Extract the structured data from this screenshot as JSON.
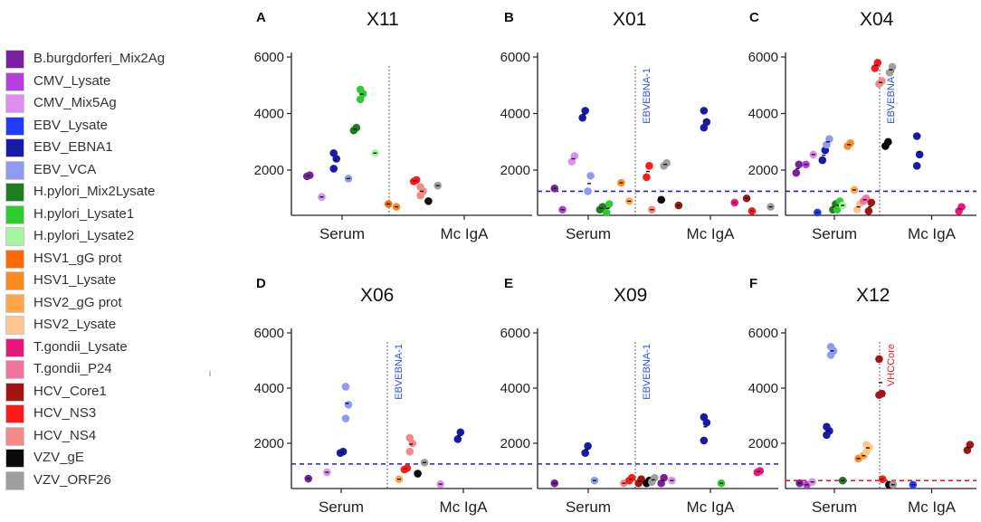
{
  "legend": [
    {
      "label": "B.burgdorferi_Mix2Ag",
      "color": "#7b1fa2"
    },
    {
      "label": "CMV_Lysate",
      "color": "#b43fdc"
    },
    {
      "label": "CMV_Mix5Ag",
      "color": "#dd8ff0"
    },
    {
      "label": "EBV_Lysate",
      "color": "#1e3cff"
    },
    {
      "label": "EBV_EBNA1",
      "color": "#1a1aa8"
    },
    {
      "label": "EBV_VCA",
      "color": "#8f9bf2"
    },
    {
      "label": "H.pylori_Mix2Lysate",
      "color": "#1e7d1e"
    },
    {
      "label": "H.pylori_Lysate1",
      "color": "#2ecc2e"
    },
    {
      "label": "H.pylori_Lysate2",
      "color": "#a6f5a0"
    },
    {
      "label": "HSV1_gG prot",
      "color": "#ff6a00"
    },
    {
      "label": "HSV1_Lysate",
      "color": "#ff8a1e"
    },
    {
      "label": "HSV2_gG prot",
      "color": "#ffa64d"
    },
    {
      "label": "HSV2_Lysate",
      "color": "#ffc58f"
    },
    {
      "label": "T.gondii_Lysate",
      "color": "#e8177d"
    },
    {
      "label": "T.gondii_P24",
      "color": "#f2739e"
    },
    {
      "label": "HCV_Core1",
      "color": "#a31515"
    },
    {
      "label": "HCV_NS3",
      "color": "#ff1a1a"
    },
    {
      "label": "HCV_NS4",
      "color": "#f58a8a"
    },
    {
      "label": "VZV_gE",
      "color": "#0a0a0a"
    },
    {
      "label": "VZV_ORF26",
      "color": "#9e9e9e"
    }
  ],
  "chart_data": [
    {
      "panel": "A",
      "title": "X11",
      "type": "scatter",
      "xlabels": [
        "Serum",
        "Mc IgA"
      ],
      "yticks": [
        "2000",
        "4000",
        "6000"
      ],
      "ylim": [
        500,
        6000
      ],
      "threshold": null,
      "annotation": null,
      "points": [
        {
          "g": "B.burgdorferi_Mix2Ag",
          "x": 1,
          "v": [
            1780,
            1820
          ]
        },
        {
          "g": "CMV_Mix5Ag",
          "x": 2,
          "v": [
            1050
          ]
        },
        {
          "g": "EBV_EBNA1",
          "x": 3,
          "v": [
            2050,
            2400,
            2600
          ]
        },
        {
          "g": "EBV_VCA",
          "x": 4,
          "v": [
            1700
          ]
        },
        {
          "g": "H.pylori_Mix2Lysate",
          "x": 4.5,
          "v": [
            3400,
            3500
          ]
        },
        {
          "g": "H.pylori_Lysate1",
          "x": 5,
          "v": [
            4500,
            4700,
            4850
          ]
        },
        {
          "g": "H.pylori_Lysate2",
          "x": 6,
          "v": [
            2600
          ]
        },
        {
          "g": "HSV1_gG prot",
          "x": 7,
          "v": [
            800
          ]
        },
        {
          "g": "HSV1_Lysate",
          "x": 7.6,
          "v": [
            700
          ]
        },
        {
          "g": "HCV_NS3",
          "x": 9,
          "v": [
            1600,
            1650
          ]
        },
        {
          "g": "HCV_NS4",
          "x": 9.5,
          "v": [
            1100,
            1250,
            1400
          ]
        },
        {
          "g": "VZV_gE",
          "x": 10,
          "v": [
            900
          ]
        },
        {
          "g": "VZV_ORF26",
          "x": 10.7,
          "v": [
            1450
          ]
        }
      ]
    },
    {
      "panel": "B",
      "title": "X01",
      "type": "scatter",
      "xlabels": [
        "Serum",
        "Mc IgA"
      ],
      "yticks": [
        "2000",
        "4000",
        "6000"
      ],
      "ylim": [
        500,
        6000
      ],
      "threshold": {
        "value": 1250,
        "color": "#2020c0"
      },
      "annotation": {
        "text": "EBVEBNA-1",
        "color": "#2f4fd0"
      },
      "points": [
        {
          "g": "B.burgdorferi_Mix2Ag",
          "x": 1,
          "v": [
            1350
          ]
        },
        {
          "g": "CMV_Lysate",
          "x": 1.6,
          "v": [
            600
          ]
        },
        {
          "g": "CMV_Mix5Ag",
          "x": 2.4,
          "v": [
            2300,
            2500
          ]
        },
        {
          "g": "EBV_EBNA1",
          "x": 3.2,
          "v": [
            3850,
            4100
          ]
        },
        {
          "g": "EBV_VCA",
          "x": 3.6,
          "v": [
            1250,
            1800
          ]
        },
        {
          "g": "H.pylori_Mix2Lysate",
          "x": 4.5,
          "v": [
            600,
            700
          ]
        },
        {
          "g": "H.pylori_Lysate1",
          "x": 5,
          "v": [
            500,
            800
          ]
        },
        {
          "g": "HSV1_Lysate",
          "x": 6,
          "v": [
            1550
          ]
        },
        {
          "g": "HSV2_gG prot",
          "x": 6.6,
          "v": [
            900
          ]
        },
        {
          "g": "HCV_NS3",
          "x": 8,
          "v": [
            1750,
            2150
          ]
        },
        {
          "g": "HCV_NS4",
          "x": 8.3,
          "v": [
            600
          ]
        },
        {
          "g": "VZV_gE",
          "x": 9,
          "v": [
            950
          ]
        },
        {
          "g": "VZV_ORF26",
          "x": 9.3,
          "v": [
            2150,
            2250
          ]
        },
        {
          "g": "HCV_Core1",
          "x": 10.3,
          "v": [
            750
          ]
        },
        {
          "g": "EBV_EBNA1",
          "x": 12.3,
          "v": [
            3500,
            3700,
            4100
          ]
        },
        {
          "g": "T.gondii_Lysate",
          "x": 14.5,
          "v": [
            850
          ]
        },
        {
          "g": "HCV_Core1",
          "x": 15.4,
          "v": [
            1000
          ]
        },
        {
          "g": "HCV_NS3",
          "x": 15.8,
          "v": [
            550
          ]
        },
        {
          "g": "VZV_ORF26",
          "x": 17.2,
          "v": [
            700
          ]
        }
      ]
    },
    {
      "panel": "C",
      "title": "X04",
      "type": "scatter",
      "xlabels": [
        "Serum",
        "Mc IgA"
      ],
      "yticks": [
        "2000",
        "4000",
        "6000"
      ],
      "ylim": [
        500,
        6000
      ],
      "threshold": {
        "value": 1250,
        "color": "#2020c0"
      },
      "annotation": {
        "text": "EBVEBNA-1",
        "color": "#2f4fd0"
      },
      "points": [
        {
          "g": "B.burgdorferi_Mix2Ag",
          "x": 0.8,
          "v": [
            1900,
            2200
          ]
        },
        {
          "g": "CMV_Lysate",
          "x": 1.6,
          "v": [
            2200
          ]
        },
        {
          "g": "CMV_Mix5Ag",
          "x": 2.3,
          "v": [
            2550
          ]
        },
        {
          "g": "EBV_Lysate",
          "x": 2.7,
          "v": [
            500
          ]
        },
        {
          "g": "EBV_EBNA1",
          "x": 3.3,
          "v": [
            2350,
            2700
          ]
        },
        {
          "g": "EBV_VCA",
          "x": 3.7,
          "v": [
            2900,
            3100
          ]
        },
        {
          "g": "H.pylori_Mix2Lysate",
          "x": 4.3,
          "v": [
            600,
            800
          ]
        },
        {
          "g": "H.pylori_Lysate1",
          "x": 4.7,
          "v": [
            600,
            900
          ]
        },
        {
          "g": "H.pylori_Lysate2",
          "x": 5.1,
          "v": [
            750
          ]
        },
        {
          "g": "HSV1_Lysate",
          "x": 5.7,
          "v": [
            2850,
            2950
          ]
        },
        {
          "g": "HSV2_gG prot",
          "x": 6.2,
          "v": [
            1300
          ]
        },
        {
          "g": "HSV2_Lysate",
          "x": 6.6,
          "v": [
            600,
            800
          ]
        },
        {
          "g": "T.gondii_P24",
          "x": 7.2,
          "v": [
            900,
            1000
          ]
        },
        {
          "g": "HCV_Core1",
          "x": 7.7,
          "v": [
            550,
            850
          ]
        },
        {
          "g": "HCV_NS3",
          "x": 8.3,
          "v": [
            5600,
            5800
          ]
        },
        {
          "g": "HCV_NS4",
          "x": 8.7,
          "v": [
            5050,
            5150
          ]
        },
        {
          "g": "VZV_gE",
          "x": 9.3,
          "v": [
            2850,
            3000
          ]
        },
        {
          "g": "VZV_ORF26",
          "x": 9.7,
          "v": [
            5450,
            5650
          ]
        },
        {
          "g": "EBV_EBNA1",
          "x": 12.3,
          "v": [
            2150,
            2550,
            3200
          ]
        },
        {
          "g": "T.gondii_Lysate",
          "x": 16.3,
          "v": [
            550,
            700
          ]
        }
      ]
    },
    {
      "panel": "D",
      "title": "X06",
      "type": "scatter",
      "xlabels": [
        "Serum",
        "Mc IgA"
      ],
      "yticks": [
        "2000",
        "4000",
        "6000"
      ],
      "ylim": [
        500,
        6000
      ],
      "threshold": {
        "value": 1250,
        "color": "#2020c0"
      },
      "annotation": {
        "text": "EBVEBNA-1",
        "color": "#2f4fd0"
      },
      "points": [
        {
          "g": "B.burgdorferi_Mix2Ag",
          "x": 1,
          "v": [
            720
          ]
        },
        {
          "g": "CMV_Mix5Ag",
          "x": 2.4,
          "v": [
            950
          ]
        },
        {
          "g": "EBV_EBNA1",
          "x": 3.5,
          "v": [
            1650,
            1700
          ]
        },
        {
          "g": "EBV_VCA",
          "x": 3.9,
          "v": [
            2900,
            3400,
            4050
          ]
        },
        {
          "g": "HSV2_gG prot",
          "x": 7.8,
          "v": [
            700
          ]
        },
        {
          "g": "HCV_NS3",
          "x": 8.3,
          "v": [
            1050,
            1100
          ]
        },
        {
          "g": "HCV_NS4",
          "x": 8.7,
          "v": [
            1700,
            2000,
            2200
          ]
        },
        {
          "g": "VZV_gE",
          "x": 9.2,
          "v": [
            900
          ]
        },
        {
          "g": "VZV_ORF26",
          "x": 9.7,
          "v": [
            1300
          ]
        },
        {
          "g": "EBV_EBNA1",
          "x": 12.3,
          "v": [
            2150,
            2400
          ]
        },
        {
          "g": "CMV_Mix5Ag",
          "x": 10.9,
          "v": [
            520
          ]
        }
      ]
    },
    {
      "panel": "E",
      "title": "X09",
      "type": "scatter",
      "xlabels": [
        "Serum",
        "Mc IgA"
      ],
      "yticks": [
        "2000",
        "4000",
        "6000"
      ],
      "ylim": [
        500,
        6000
      ],
      "threshold": {
        "value": 1250,
        "color": "#2020c0"
      },
      "annotation": {
        "text": "EBVEBNA-1",
        "color": "#2f4fd0"
      },
      "points": [
        {
          "g": "B.burgdorferi_Mix2Ag",
          "x": 1,
          "v": [
            550
          ]
        },
        {
          "g": "EBV_EBNA1",
          "x": 3.4,
          "v": [
            1650,
            1900
          ]
        },
        {
          "g": "EBV_VCA",
          "x": 4,
          "v": [
            650
          ]
        },
        {
          "g": "HCV_NS4",
          "x": 6.2,
          "v": [
            550
          ]
        },
        {
          "g": "HCV_NS3",
          "x": 6.7,
          "v": [
            650,
            750
          ]
        },
        {
          "g": "HCV_Core1",
          "x": 7.4,
          "v": [
            550,
            700
          ]
        },
        {
          "g": "VZV_gE",
          "x": 8,
          "v": [
            550,
            650
          ]
        },
        {
          "g": "VZV_ORF26",
          "x": 8.4,
          "v": [
            600,
            750
          ]
        },
        {
          "g": "B.burgdorferi_Mix2Ag",
          "x": 9.1,
          "v": [
            550,
            750
          ]
        },
        {
          "g": "CMV_Mix5Ag",
          "x": 9.8,
          "v": [
            650
          ]
        },
        {
          "g": "EBV_EBNA1",
          "x": 12.3,
          "v": [
            2100,
            2750,
            2950
          ]
        },
        {
          "g": "H.pylori_Lysate1",
          "x": 13.5,
          "v": [
            550
          ]
        },
        {
          "g": "T.gondii_Lysate",
          "x": 16.3,
          "v": [
            950,
            1000
          ]
        }
      ]
    },
    {
      "panel": "F",
      "title": "X12",
      "type": "scatter",
      "xlabels": [
        "Serum",
        "Mc IgA"
      ],
      "yticks": [
        "2000",
        "4000",
        "6000"
      ],
      "ylim": [
        500,
        6000
      ],
      "threshold": {
        "value": 650,
        "color": "#e0202a"
      },
      "annotation": {
        "text": "VHCCore",
        "color": "#e0202a"
      },
      "points": [
        {
          "g": "B.burgdorferi_Mix2Ag",
          "x": 1,
          "v": [
            550
          ]
        },
        {
          "g": "CMV_Lysate",
          "x": 1.7,
          "v": [
            500
          ]
        },
        {
          "g": "CMV_Mix5Ag",
          "x": 2.2,
          "v": [
            600
          ]
        },
        {
          "g": "EBV_EBNA1",
          "x": 3.7,
          "v": [
            2300,
            2450,
            2600
          ]
        },
        {
          "g": "EBV_VCA",
          "x": 4.1,
          "v": [
            5200,
            5350,
            5500
          ]
        },
        {
          "g": "H.pylori_Mix2Lysate",
          "x": 5.1,
          "v": [
            650
          ]
        },
        {
          "g": "HSV1_Lysate",
          "x": 6.6,
          "v": [
            1450
          ]
        },
        {
          "g": "HSV2_gG prot",
          "x": 7.1,
          "v": [
            1550
          ]
        },
        {
          "g": "HSV2_Lysate",
          "x": 7.5,
          "v": [
            1700,
            1850,
            1950
          ]
        },
        {
          "g": "HCV_Core1",
          "x": 8.7,
          "v": [
            3750,
            3800,
            5050
          ]
        },
        {
          "g": "HCV_NS3",
          "x": 8.9,
          "v": [
            700
          ]
        },
        {
          "g": "VZV_gE",
          "x": 9.5,
          "v": [
            500
          ]
        },
        {
          "g": "VZV_ORF26",
          "x": 9.9,
          "v": [
            500
          ]
        },
        {
          "g": "EBV_Lysate",
          "x": 11.8,
          "v": [
            500
          ]
        },
        {
          "g": "HCV_Core1",
          "x": 17.1,
          "v": [
            1750,
            1950
          ]
        }
      ]
    }
  ]
}
